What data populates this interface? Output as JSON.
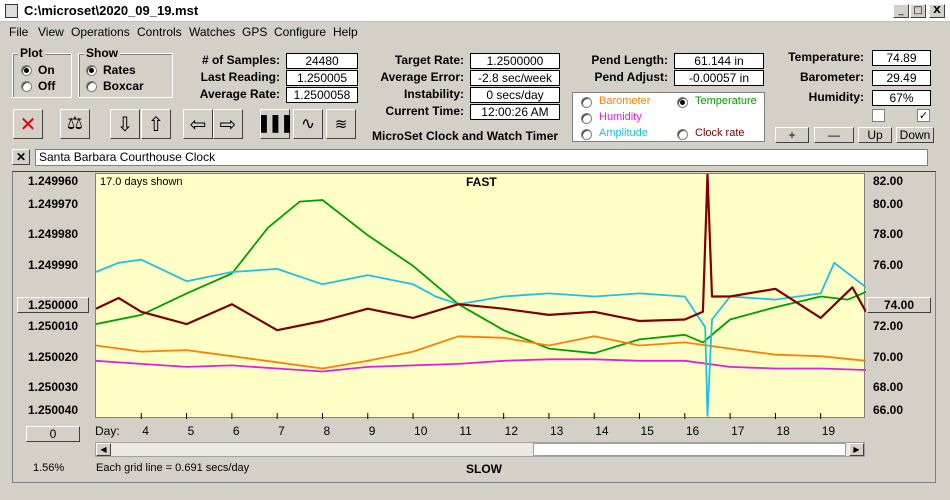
{
  "window": {
    "title": "C:\\microset\\2020_09_19.mst",
    "minimize": "_",
    "maximize": "□",
    "close": "X"
  },
  "menu": [
    "File",
    "View",
    "Operations",
    "Controls",
    "Watches",
    "GPS",
    "Configure",
    "Help"
  ],
  "plot_group": {
    "label": "Plot",
    "options": [
      "On",
      "Off"
    ],
    "selected": "On"
  },
  "show_group": {
    "label": "Show",
    "options": [
      "Rates",
      "Boxcar"
    ],
    "selected": "Rates"
  },
  "stats": {
    "samples_label": "# of Samples:",
    "samples": "24480",
    "last_label": "Last Reading:",
    "last": "1.250005",
    "avg_rate_label": "Average Rate:",
    "avg_rate": "1.2500058",
    "target_label": "Target Rate:",
    "target": "1.2500000",
    "avg_err_label": "Average Error:",
    "avg_err": "-2.8 sec/week",
    "instab_label": "Instability:",
    "instab": "0 secs/day",
    "time_label": "Current Time:",
    "time": "12:00:26 AM",
    "pend_len_label": "Pend Length:",
    "pend_len": "61.144 in",
    "pend_adj_label": "Pend Adjust:",
    "pend_adj": "-0.00057 in",
    "temp_label": "Temperature:",
    "temp": "74.89",
    "baro_label": "Barometer:",
    "baro": "29.49",
    "humid_label": "Humidity:",
    "humid": "67%"
  },
  "app_name": "MicroSet Clock and Watch Timer",
  "sensor_options": {
    "barometer": "Barometer",
    "temperature": "Temperature",
    "humidity": "Humidity",
    "amplitude": "Amplitude",
    "clock_rate": "Clock rate",
    "selected": "Temperature",
    "colors": {
      "barometer": "#ff8000",
      "temperature": "#00a000",
      "humidity": "#e020e0",
      "amplitude": "#20c0e0",
      "clock_rate": "#800000"
    }
  },
  "adjust_buttons": [
    "+",
    "—",
    "Up",
    "Down"
  ],
  "checkboxes": [
    false,
    true
  ],
  "toolbar_icons": [
    "delete-icon",
    "balance-icon",
    "arrow-down-icon",
    "arrow-up-icon",
    "arrow-left-icon",
    "arrow-right-icon",
    "bar-graph-icon",
    "wave-icon",
    "multi-wave-icon"
  ],
  "watch_name": "Santa Barbara Courthouse Clock",
  "chart": {
    "days_shown": "17.0 days shown",
    "fast_label": "FAST",
    "slow_label": "SLOW",
    "grid_note": "Each grid line = 0.691 secs/day",
    "zoom": "1.56%",
    "day_label": "Day:",
    "left_button": "1.250000",
    "right_button": "74.00",
    "bottom_left_button": "0"
  },
  "chart_data": {
    "type": "line",
    "x_label": "Day:",
    "x_ticks": [
      "4",
      "5",
      "6",
      "7",
      "8",
      "9",
      "10",
      "11",
      "12",
      "13",
      "14",
      "15",
      "16",
      "17",
      "18",
      "19"
    ],
    "x_range": [
      3,
      20
    ],
    "left_axis": {
      "ticks": [
        "1.249960",
        "1.249970",
        "1.249980",
        "1.249990",
        "1.250000",
        "1.250010",
        "1.250020",
        "1.250030",
        "1.250040"
      ],
      "range": [
        1.24996,
        1.25004
      ],
      "inverted": true
    },
    "right_axis": {
      "ticks": [
        "82.00",
        "80.00",
        "78.00",
        "76.00",
        "74.00",
        "72.00",
        "70.00",
        "68.00",
        "66.00"
      ],
      "range": [
        66,
        82
      ]
    },
    "series": [
      {
        "key": "temperature",
        "color": "#00a000",
        "x": [
          3,
          4,
          5,
          6,
          6.8,
          7.5,
          8,
          9,
          10,
          11,
          12,
          13,
          14,
          15,
          16,
          16.4,
          17,
          18,
          19,
          19.6,
          20
        ],
        "y": [
          72.2,
          72.8,
          74.2,
          75.5,
          78.5,
          80.2,
          80.3,
          78,
          76,
          73.5,
          71.8,
          70.6,
          70.3,
          71.2,
          71.5,
          71.0,
          72.5,
          73.3,
          74.0,
          73.8,
          74.3
        ]
      },
      {
        "key": "barometer",
        "color": "#ff8000",
        "x": [
          3,
          4,
          5,
          6,
          7,
          8,
          9,
          10,
          11,
          12,
          13,
          14,
          15,
          16,
          17,
          18,
          19,
          20
        ],
        "y": [
          70.8,
          70.4,
          70.5,
          70.1,
          69.7,
          69.3,
          69.8,
          70.4,
          71.4,
          71.3,
          70.8,
          71.4,
          70.8,
          71.0,
          70.6,
          70.2,
          70.1,
          69.8
        ]
      },
      {
        "key": "humidity",
        "color": "#e020e0",
        "x": [
          3,
          4,
          5,
          6,
          7,
          8,
          9,
          10,
          11,
          12,
          13,
          14,
          15,
          16,
          17,
          18,
          19,
          20
        ],
        "y": [
          69.8,
          69.6,
          69.4,
          69.5,
          69.3,
          69.1,
          69.4,
          69.5,
          69.6,
          69.8,
          69.9,
          69.9,
          69.8,
          69.8,
          69.4,
          69.3,
          69.3,
          69.2
        ]
      },
      {
        "key": "amplitude",
        "color": "#20c0e0",
        "x": [
          3,
          3.5,
          4,
          5,
          6,
          7,
          8,
          9,
          10,
          10.5,
          11,
          12,
          13,
          14,
          15,
          16,
          16.45,
          16.5,
          16.6,
          17,
          18,
          19,
          19.3,
          20
        ],
        "y": [
          75.6,
          76.2,
          76.4,
          75.0,
          75.6,
          75.8,
          74.8,
          75.4,
          74.8,
          74.0,
          73.5,
          74.0,
          74.2,
          74.0,
          74.2,
          74.0,
          72.0,
          66.2,
          72.5,
          74.0,
          73.8,
          74.2,
          76.2,
          74.6
        ]
      },
      {
        "key": "clock_rate",
        "color": "#800000",
        "x": [
          3,
          3.5,
          4,
          5,
          6,
          7,
          8,
          9,
          10,
          11,
          12,
          13,
          14,
          15,
          16,
          16.4,
          16.5,
          16.6,
          17,
          18,
          19,
          19.7,
          20
        ],
        "y": [
          73.2,
          73.9,
          73.0,
          72.2,
          73.5,
          71.8,
          72.4,
          73.2,
          72.6,
          73.5,
          73.2,
          72.8,
          73.0,
          72.4,
          72.5,
          73.0,
          82.0,
          74.0,
          74.0,
          74.5,
          72.6,
          74.6,
          73.0
        ]
      }
    ]
  }
}
